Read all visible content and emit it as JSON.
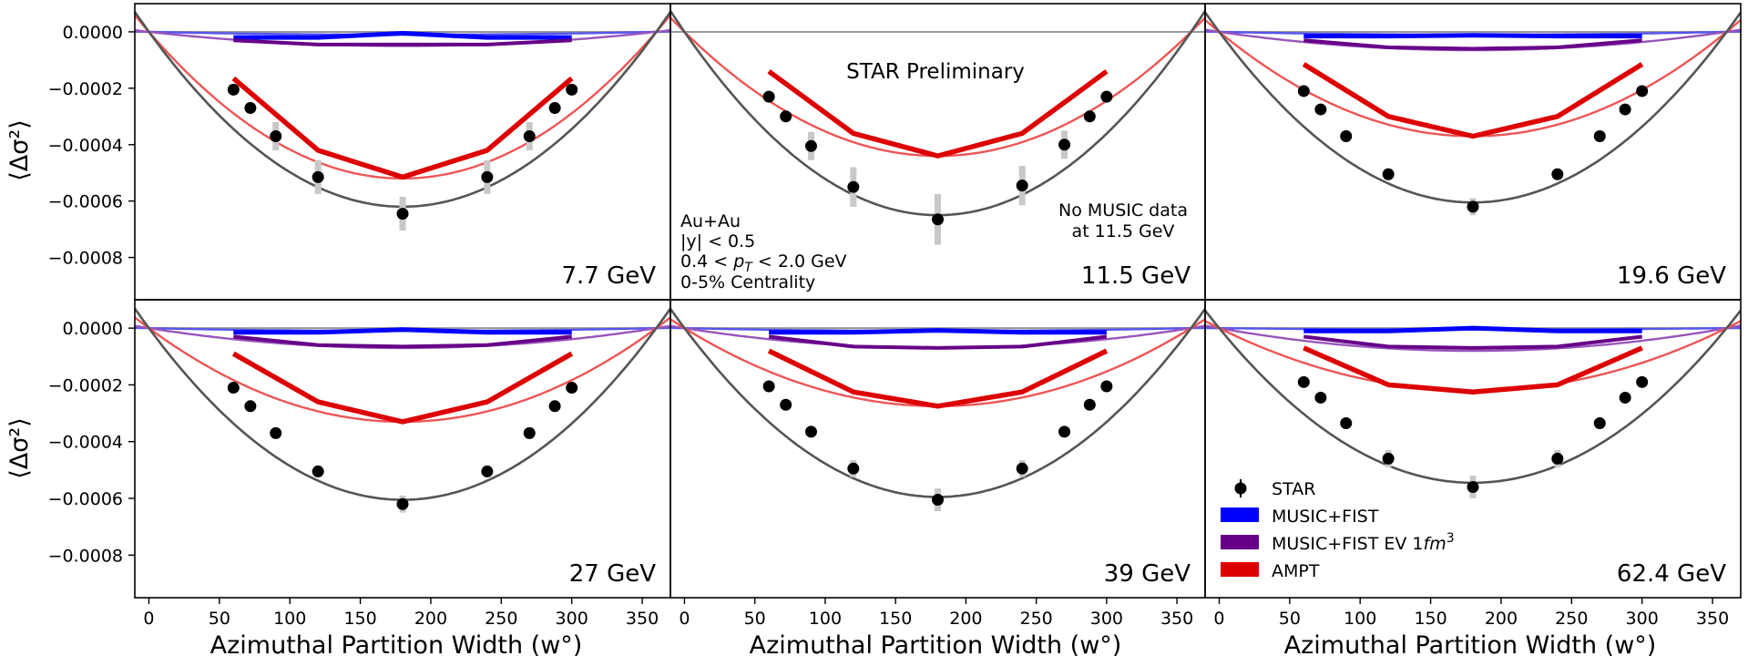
{
  "figure": {
    "x_axis_title": "Azimuthal Partition Width (w°)",
    "y_axis_title": "⟨Δσ²⟩",
    "preliminary_label": "STAR Preliminary",
    "system_notes": [
      "Au+Au",
      "|y| < 0.5",
      "0.4 < pT < 2.0 GeV",
      "0-5% Centrality"
    ],
    "no_music_note": [
      "No MUSIC data",
      "at 11.5 GeV"
    ],
    "x_ticks": [
      "0",
      "50",
      "100",
      "150",
      "200",
      "250",
      "300",
      "350"
    ],
    "y_ticks": [
      "0.0000",
      "−0.0002",
      "−0.0004",
      "−0.0006",
      "−0.0008"
    ],
    "legend": [
      {
        "label": "STAR",
        "color": "#000000",
        "kind": "marker"
      },
      {
        "label": "MUSIC+FIST",
        "color": "#0000ff",
        "kind": "band"
      },
      {
        "label": "MUSIC+FIST EV 1fm³",
        "color": "#660088",
        "kind": "band"
      },
      {
        "label": "AMPT",
        "color": "#dd0000",
        "kind": "band"
      }
    ],
    "colors": {
      "star": "#000000",
      "star_err": "#c8c8c8",
      "star_fit": "#555555",
      "music": "#0000ff",
      "music_fit": "#5555ee",
      "music_ev": "#660088",
      "music_ev_fit": "#9955bb",
      "ampt": "#dd0000",
      "ampt_fit": "#ee5555",
      "zero_line": "#999999"
    }
  },
  "chart_data": [
    {
      "type": "scatter",
      "energy": "7.7 GeV",
      "xlim": [
        -10,
        370
      ],
      "ylim": [
        -0.00095,
        0.0001
      ],
      "star": {
        "x": [
          60,
          72,
          90,
          120,
          180,
          240,
          270,
          288,
          300
        ],
        "y": [
          -0.000205,
          -0.00027,
          -0.00037,
          -0.000515,
          -0.000645,
          -0.000515,
          -0.00037,
          -0.00027,
          -0.000205
        ],
        "err": [
          1e-05,
          1e-05,
          5e-05,
          6e-05,
          6e-05,
          6e-05,
          5e-05,
          1e-05,
          1e-05
        ]
      },
      "star_fit_min": -0.00062,
      "music": {
        "x": [
          60,
          120,
          180,
          240,
          300
        ],
        "y": [
          -2e-05,
          -2e-05,
          -5e-06,
          -2e-05,
          -2e-05
        ]
      },
      "music_fit_min": -1e-05,
      "music_ev": {
        "x": [
          60,
          120,
          180,
          240,
          300
        ],
        "y": [
          -3e-05,
          -4.5e-05,
          -4.5e-05,
          -4.5e-05,
          -3e-05
        ]
      },
      "music_ev_fit_min": -5e-05,
      "ampt": {
        "x": [
          60,
          120,
          180,
          240,
          300
        ],
        "y": [
          -0.000165,
          -0.00042,
          -0.000515,
          -0.00042,
          -0.000165
        ]
      },
      "ampt_fit_min": -0.00052
    },
    {
      "type": "scatter",
      "energy": "11.5 GeV",
      "xlim": [
        -10,
        370
      ],
      "ylim": [
        -0.00095,
        0.0001
      ],
      "star": {
        "x": [
          60,
          72,
          90,
          120,
          180,
          240,
          270,
          288,
          300
        ],
        "y": [
          -0.00023,
          -0.0003,
          -0.000405,
          -0.00055,
          -0.000665,
          -0.000545,
          -0.0004,
          -0.0003,
          -0.00023
        ],
        "err": [
          1e-05,
          1e-05,
          5e-05,
          7e-05,
          9e-05,
          7e-05,
          5e-05,
          1e-05,
          1e-05
        ]
      },
      "star_fit_min": -0.00065,
      "ampt": {
        "x": [
          60,
          120,
          180,
          240,
          300
        ],
        "y": [
          -0.00014,
          -0.00036,
          -0.00044,
          -0.00036,
          -0.00014
        ]
      },
      "ampt_fit_min": -0.00044
    },
    {
      "type": "scatter",
      "energy": "19.6 GeV",
      "xlim": [
        -10,
        370
      ],
      "ylim": [
        -0.00095,
        0.0001
      ],
      "star": {
        "x": [
          60,
          72,
          90,
          120,
          180,
          240,
          270,
          288,
          300
        ],
        "y": [
          -0.00021,
          -0.000275,
          -0.00037,
          -0.000505,
          -0.00062,
          -0.000505,
          -0.00037,
          -0.000275,
          -0.00021
        ],
        "err": [
          1e-05,
          1e-05,
          2e-05,
          2e-05,
          3e-05,
          2e-05,
          2e-05,
          1e-05,
          1e-05
        ]
      },
      "star_fit_min": -0.000605,
      "music": {
        "x": [
          60,
          120,
          180,
          240,
          300
        ],
        "y": [
          -1.5e-05,
          -1.5e-05,
          -1.2e-05,
          -1.5e-05,
          -1.5e-05
        ]
      },
      "music_fit_min": -1e-05,
      "music_ev": {
        "x": [
          60,
          120,
          180,
          240,
          300
        ],
        "y": [
          -3e-05,
          -5.5e-05,
          -6e-05,
          -5.5e-05,
          -3e-05
        ]
      },
      "music_ev_fit_min": -6.5e-05,
      "ampt": {
        "x": [
          60,
          120,
          180,
          240,
          300
        ],
        "y": [
          -0.000115,
          -0.0003,
          -0.00037,
          -0.0003,
          -0.000115
        ]
      },
      "ampt_fit_min": -0.00037
    },
    {
      "type": "scatter",
      "energy": "27 GeV",
      "xlim": [
        -10,
        370
      ],
      "ylim": [
        -0.00095,
        0.0001
      ],
      "star": {
        "x": [
          60,
          72,
          90,
          120,
          180,
          240,
          270,
          288,
          300
        ],
        "y": [
          -0.00021,
          -0.000275,
          -0.00037,
          -0.000505,
          -0.00062,
          -0.000505,
          -0.00037,
          -0.000275,
          -0.00021
        ],
        "err": [
          1e-05,
          1e-05,
          2e-05,
          2e-05,
          3e-05,
          2e-05,
          2e-05,
          1e-05,
          1e-05
        ]
      },
      "star_fit_min": -0.000605,
      "music": {
        "x": [
          60,
          120,
          180,
          240,
          300
        ],
        "y": [
          -1.5e-05,
          -1.5e-05,
          -5e-06,
          -1.5e-05,
          -1.5e-05
        ]
      },
      "music_fit_min": -1e-05,
      "music_ev": {
        "x": [
          60,
          120,
          180,
          240,
          300
        ],
        "y": [
          -3e-05,
          -6e-05,
          -6.5e-05,
          -6e-05,
          -3e-05
        ]
      },
      "music_ev_fit_min": -7e-05,
      "ampt": {
        "x": [
          60,
          120,
          180,
          240,
          300
        ],
        "y": [
          -9e-05,
          -0.00026,
          -0.00033,
          -0.00026,
          -9e-05
        ]
      },
      "ampt_fit_min": -0.00033
    },
    {
      "type": "scatter",
      "energy": "39 GeV",
      "xlim": [
        -10,
        370
      ],
      "ylim": [
        -0.00095,
        0.0001
      ],
      "star": {
        "x": [
          60,
          72,
          90,
          120,
          180,
          240,
          270,
          288,
          300
        ],
        "y": [
          -0.000205,
          -0.00027,
          -0.000365,
          -0.000495,
          -0.000605,
          -0.000495,
          -0.000365,
          -0.00027,
          -0.000205
        ],
        "err": [
          1e-05,
          1e-05,
          2e-05,
          3e-05,
          4e-05,
          3e-05,
          2e-05,
          1e-05,
          1e-05
        ]
      },
      "star_fit_min": -0.000595,
      "music": {
        "x": [
          60,
          120,
          180,
          240,
          300
        ],
        "y": [
          -1.5e-05,
          -1.5e-05,
          -8e-06,
          -1.5e-05,
          -1.5e-05
        ]
      },
      "music_fit_min": -1e-05,
      "music_ev": {
        "x": [
          60,
          120,
          180,
          240,
          300
        ],
        "y": [
          -3e-05,
          -6.5e-05,
          -7e-05,
          -6.5e-05,
          -3e-05
        ]
      },
      "music_ev_fit_min": -7e-05,
      "ampt": {
        "x": [
          60,
          120,
          180,
          240,
          300
        ],
        "y": [
          -8e-05,
          -0.000225,
          -0.000275,
          -0.000225,
          -8e-05
        ]
      },
      "ampt_fit_min": -0.000275
    },
    {
      "type": "scatter",
      "energy": "62.4 GeV",
      "xlim": [
        -10,
        370
      ],
      "ylim": [
        -0.00095,
        0.0001
      ],
      "star": {
        "x": [
          60,
          72,
          90,
          120,
          180,
          240,
          270,
          288,
          300
        ],
        "y": [
          -0.00019,
          -0.000245,
          -0.000335,
          -0.00046,
          -0.00056,
          -0.00046,
          -0.000335,
          -0.000245,
          -0.00019
        ],
        "err": [
          1e-05,
          1e-05,
          2e-05,
          3e-05,
          4e-05,
          3e-05,
          2e-05,
          1e-05,
          1e-05
        ]
      },
      "star_fit_min": -0.000545,
      "music": {
        "x": [
          60,
          120,
          180,
          240,
          300
        ],
        "y": [
          -1e-05,
          -1e-05,
          0.0,
          -1e-05,
          -1e-05
        ]
      },
      "music_fit_min": -5e-06,
      "music_ev": {
        "x": [
          60,
          120,
          180,
          240,
          300
        ],
        "y": [
          -3e-05,
          -6.5e-05,
          -7e-05,
          -6.5e-05,
          -3e-05
        ]
      },
      "music_ev_fit_min": -8e-05,
      "ampt": {
        "x": [
          60,
          120,
          180,
          240,
          300
        ],
        "y": [
          -7e-05,
          -0.0002,
          -0.000225,
          -0.0002,
          -7e-05
        ]
      },
      "ampt_fit_min": -0.00022
    }
  ]
}
